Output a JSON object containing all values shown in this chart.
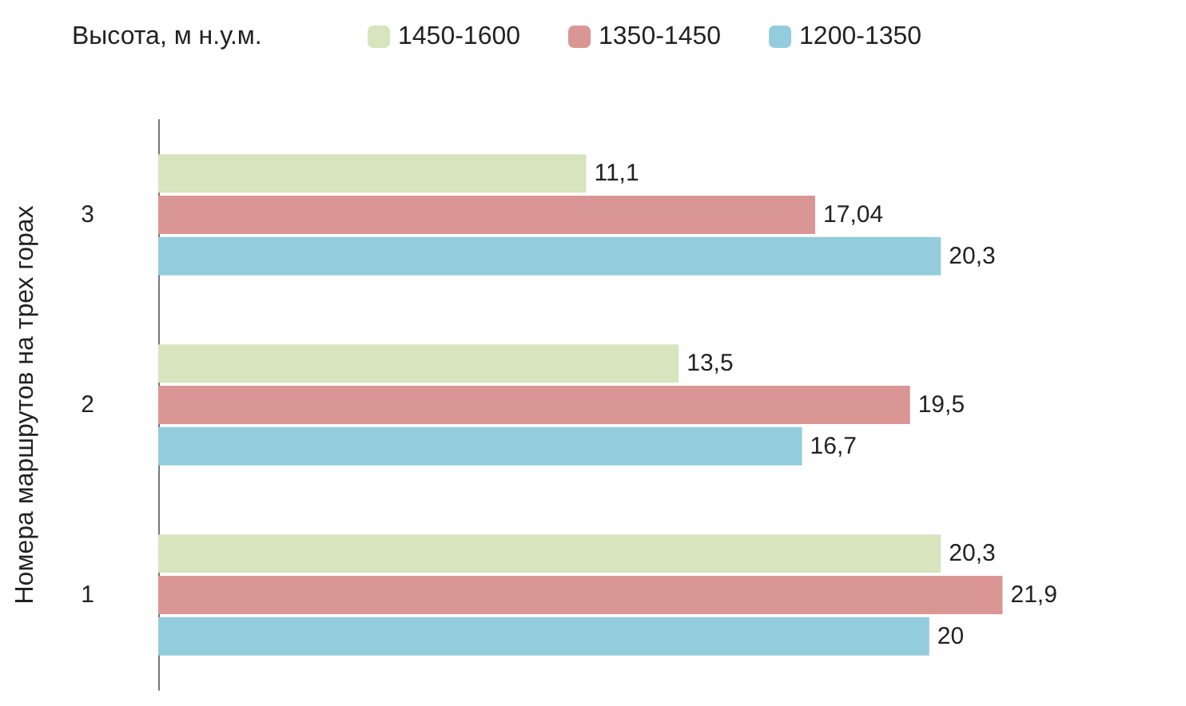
{
  "chart_data": {
    "type": "bar",
    "orientation": "horizontal",
    "categories": [
      "3",
      "2",
      "1"
    ],
    "ylabel": "Номера маршрутов на трех горах",
    "legend_title": "Высота, м н.у.м.",
    "legend": "top",
    "grid": false,
    "series": [
      {
        "name": "1450-1600",
        "color": "#d7e4bd",
        "values": [
          11.1,
          13.5,
          20.3
        ],
        "value_labels": [
          "11,1",
          "13,5",
          "20,3"
        ]
      },
      {
        "name": "1350-1450",
        "color": "#d99694",
        "values": [
          17.04,
          19.5,
          21.9
        ],
        "value_labels": [
          "17,04",
          "19,5",
          "21,9"
        ]
      },
      {
        "name": "1200-1350",
        "color": "#93cddd",
        "values": [
          20.3,
          16.7,
          20
        ],
        "value_labels": [
          "20,3",
          "16,7",
          "20"
        ]
      }
    ]
  }
}
